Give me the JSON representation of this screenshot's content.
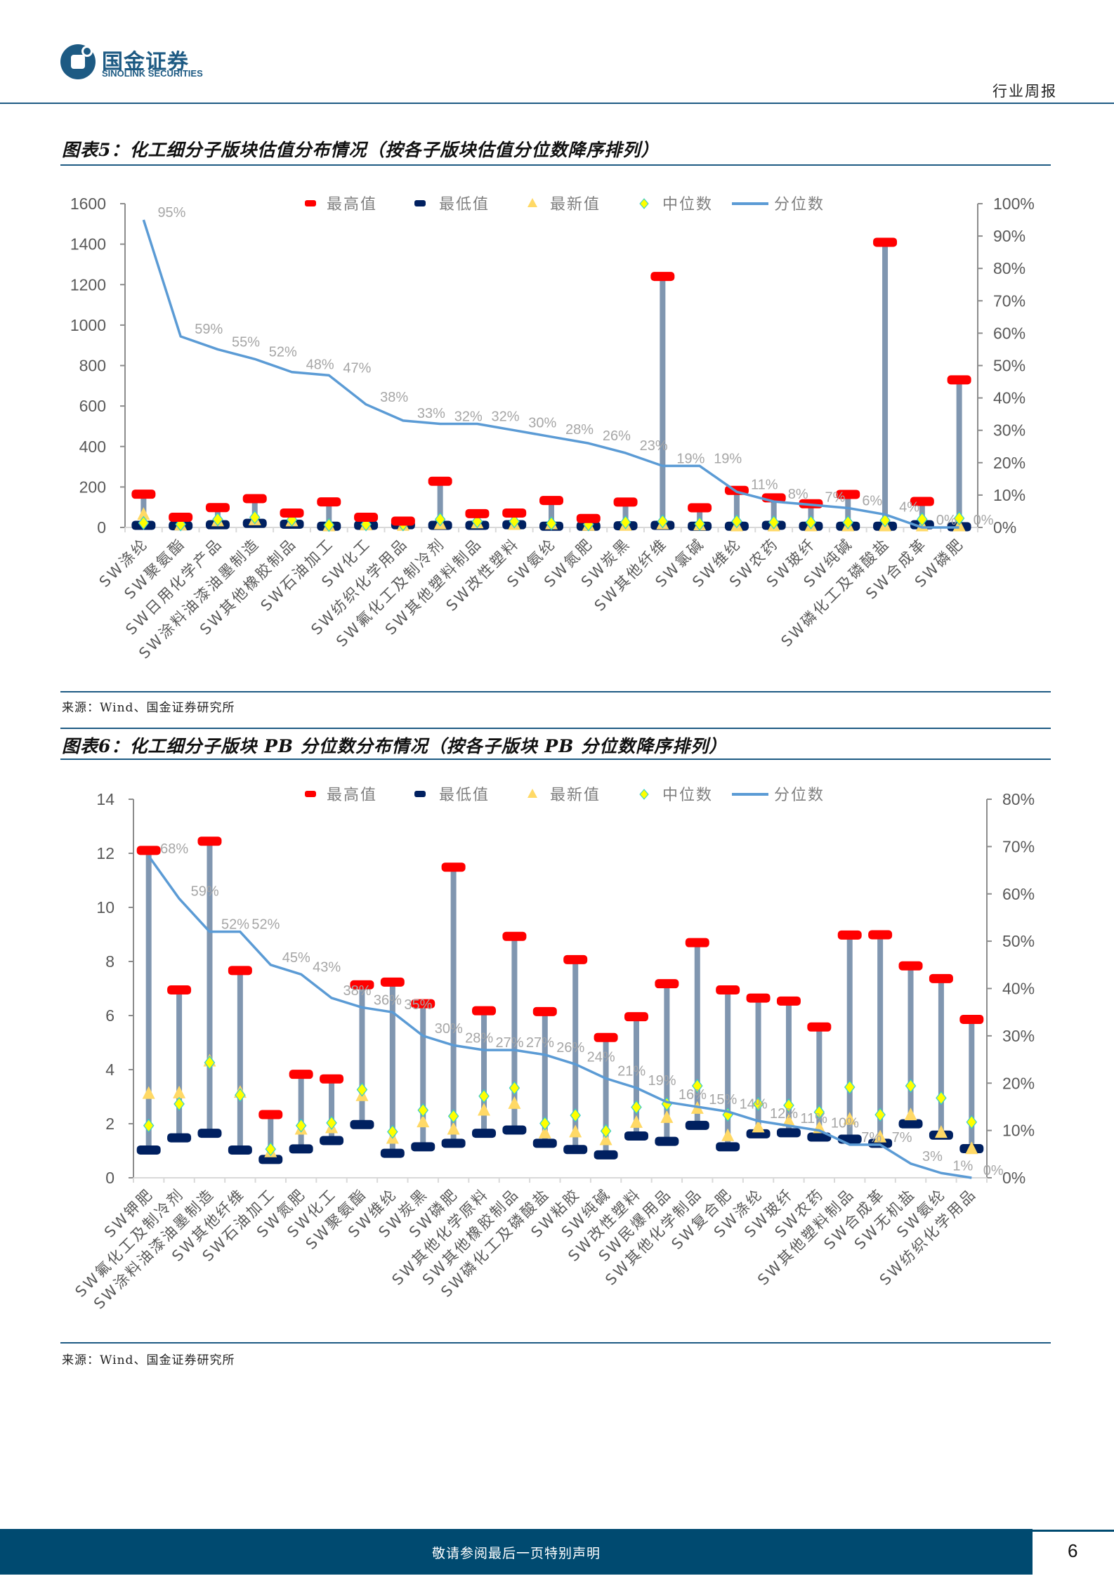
{
  "header": {
    "logo_cn": "国金证券",
    "logo_en": "SINOLINK SECURITIES",
    "report_type": "行业周报",
    "brand_color": "#1d5a83"
  },
  "figures": [
    {
      "title": "图表5：化工细分子版块估值分布情况（按各子版块估值分位数降序排列）",
      "source": "来源：Wind、国金证券研究所"
    },
    {
      "title": "图表6：化工细分子版块 PB 分位数分布情况（按各子版块 PB 分位数降序排列）",
      "source": "来源：Wind、国金证券研究所"
    }
  ],
  "footer": {
    "disclaimer": "敬请参阅最后一页特别声明",
    "page": "6",
    "color": "#004a70"
  },
  "chart_data": [
    {
      "type": "line+range",
      "legend_position": "top",
      "legend": [
        "最高值",
        "最低值",
        "最新值",
        "中位数",
        "分位数"
      ],
      "colors": {
        "max": "#ff0000",
        "min": "#002060",
        "latest": "#ffd966",
        "median": "#ffff00",
        "percentile": "#5b9bd5",
        "range": "#8096b0"
      },
      "ylim": [
        0,
        1600
      ],
      "yticks": [
        0,
        200,
        400,
        600,
        800,
        1000,
        1200,
        1400,
        1600
      ],
      "y2lim": [
        0,
        100
      ],
      "y2ticks": [
        0,
        10,
        20,
        30,
        40,
        50,
        60,
        70,
        80,
        90,
        100
      ],
      "categories": [
        "SW涤纶",
        "SW聚氨酯",
        "SW日用化学产品",
        "SW涂料油漆油墨制造",
        "SW其他橡胶制品",
        "SW石油加工",
        "SW化工",
        "SW纺织化学用品",
        "SW氟化工及制冷剂",
        "SW其他塑料制品",
        "SW改性塑料",
        "SW氨纶",
        "SW氮肥",
        "SW炭黑",
        "SW其他纤维",
        "SW氯碱",
        "SW维纶",
        "SW农药",
        "SW玻纤",
        "SW纯碱",
        "SW磷化工及磷酸盐",
        "SW合成革",
        "SW磷肥"
      ],
      "max": [
        166,
        52,
        100,
        144,
        73,
        128,
        52,
        33,
        230,
        70,
        73,
        135,
        46,
        127,
        1242,
        99,
        185,
        148,
        119,
        165,
        1411,
        130,
        731
      ],
      "min": [
        12,
        10,
        15,
        22,
        18,
        8,
        12,
        15,
        12,
        12,
        15,
        8,
        8,
        10,
        12,
        8,
        8,
        12,
        8,
        8,
        8,
        15,
        5
      ],
      "latest": [
        62,
        10,
        30,
        35,
        30,
        5,
        10,
        8,
        15,
        20,
        12,
        15,
        8,
        8,
        15,
        10,
        5,
        5,
        5,
        5,
        5,
        5,
        5
      ],
      "median": [
        22,
        15,
        40,
        50,
        38,
        12,
        15,
        15,
        40,
        30,
        30,
        20,
        15,
        25,
        30,
        18,
        30,
        25,
        25,
        25,
        35,
        40,
        45
      ],
      "percentile": [
        95,
        59,
        55,
        52,
        48,
        47,
        38,
        33,
        32,
        32,
        30,
        28,
        26,
        23,
        19,
        19,
        11,
        8,
        7,
        6,
        4,
        0,
        0
      ]
    },
    {
      "type": "line+range",
      "legend_position": "top",
      "legend": [
        "最高值",
        "最低值",
        "最新值",
        "中位数",
        "分位数"
      ],
      "colors": {
        "max": "#ff0000",
        "min": "#002060",
        "latest": "#ffd966",
        "median": "#ffff00",
        "percentile": "#5b9bd5",
        "range": "#8096b0"
      },
      "ylim": [
        0,
        14
      ],
      "yticks": [
        0,
        2,
        4,
        6,
        8,
        10,
        12,
        14
      ],
      "y2lim": [
        0,
        80
      ],
      "y2ticks": [
        0,
        10,
        20,
        30,
        40,
        50,
        60,
        70,
        80
      ],
      "categories": [
        "SW钾肥",
        "SW氟化工及制冷剂",
        "SW涂料油漆油墨制造",
        "SW其他纤维",
        "SW石油加工",
        "SW氮肥",
        "SW化工",
        "SW聚氨酯",
        "SW维纶",
        "SW炭黑",
        "SW磷肥",
        "SW其他化学原料",
        "SW其他橡胶制品",
        "SW磷化工及磷酸盐",
        "SW粘胶",
        "SW纯碱",
        "SW改性塑料",
        "SW民爆用品",
        "SW其他化学制品",
        "SW复合肥",
        "SW涤纶",
        "SW玻纤",
        "SW农药",
        "SW其他塑料制品",
        "SW合成革",
        "SW无机盐",
        "SW氨纶",
        "SW纺织化学用品"
      ],
      "max": [
        12.12,
        6.96,
        12.46,
        7.68,
        2.35,
        3.84,
        3.67,
        7.15,
        7.25,
        6.45,
        11.5,
        6.19,
        8.94,
        6.16,
        8.08,
        5.2,
        5.97,
        7.19,
        8.71,
        6.96,
        6.66,
        6.55,
        5.59,
        8.99,
        9.0,
        7.85,
        7.38,
        5.87
      ],
      "min": [
        1.04,
        1.49,
        1.66,
        1.04,
        0.69,
        1.08,
        1.39,
        1.98,
        0.92,
        1.16,
        1.29,
        1.66,
        1.78,
        1.29,
        1.06,
        0.86,
        1.56,
        1.36,
        1.95,
        1.16,
        1.64,
        1.68,
        1.52,
        1.44,
        1.29,
        2.01,
        1.59,
        1.09
      ],
      "latest": [
        3.1,
        3.12,
        4.3,
        3.14,
        0.94,
        1.78,
        1.83,
        3.02,
        1.44,
        2.05,
        1.78,
        2.48,
        2.73,
        1.64,
        1.68,
        1.39,
        2.03,
        2.21,
        2.55,
        1.54,
        1.86,
        2.08,
        1.83,
        2.15,
        1.49,
        2.31,
        1.66,
        1.06
      ],
      "median": [
        1.93,
        2.73,
        4.26,
        3.06,
        1.06,
        1.93,
        2.03,
        3.26,
        1.7,
        2.5,
        2.28,
        3.02,
        3.32,
        2.01,
        2.31,
        1.73,
        2.61,
        2.73,
        3.4,
        2.33,
        2.73,
        2.68,
        2.43,
        3.35,
        2.33,
        3.4,
        2.95,
        2.06
      ],
      "percentile": [
        68,
        59,
        52,
        52,
        45,
        43,
        38,
        36,
        35,
        30,
        28,
        27,
        27,
        26,
        24,
        21,
        19,
        16,
        15,
        14,
        12,
        11,
        10,
        7,
        7,
        3,
        1,
        0
      ]
    }
  ]
}
